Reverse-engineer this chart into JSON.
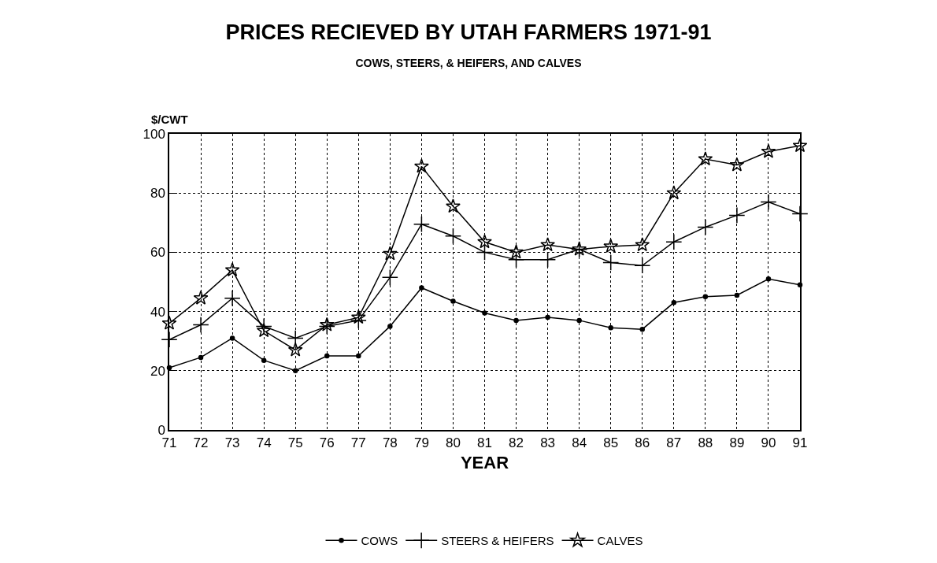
{
  "chart_data": {
    "type": "line",
    "title": "PRICES RECIEVED BY UTAH FARMERS 1971-91",
    "subtitle": "COWS, STEERS, & HEIFERS, AND CALVES",
    "xlabel": "YEAR",
    "ylabel": "$/CWT",
    "x": [
      71,
      72,
      73,
      74,
      75,
      76,
      77,
      78,
      79,
      80,
      81,
      82,
      83,
      84,
      85,
      86,
      87,
      88,
      89,
      90,
      91
    ],
    "series": [
      {
        "name": "COWS",
        "color": "#000000",
        "marker": "circle",
        "values": [
          21,
          24.5,
          31,
          23.5,
          20,
          25,
          25,
          35,
          48,
          43.5,
          39.5,
          37,
          38,
          37,
          34.5,
          34,
          43,
          45,
          45.5,
          51,
          49
        ]
      },
      {
        "name": "STEERS & HEIFERS",
        "color": "#000000",
        "marker": "cross",
        "values": [
          30.5,
          35.5,
          44.5,
          35,
          31,
          35,
          37,
          51.5,
          69.5,
          65.5,
          60,
          57.5,
          57.5,
          61,
          56.5,
          55.5,
          63.5,
          68.5,
          72.5,
          77,
          73
        ]
      },
      {
        "name": "CALVES",
        "color": "#000000",
        "marker": "star",
        "values": [
          36,
          44.5,
          54,
          33.5,
          27,
          35.5,
          38,
          59.5,
          89,
          75.5,
          63.5,
          60,
          62.5,
          61,
          62,
          62.5,
          80,
          91.5,
          89.5,
          94,
          96
        ]
      }
    ],
    "xlim": [
      71,
      91
    ],
    "xticks": [
      71,
      72,
      73,
      74,
      75,
      76,
      77,
      78,
      79,
      80,
      81,
      82,
      83,
      84,
      85,
      86,
      87,
      88,
      89,
      90,
      91
    ],
    "ylim": [
      0,
      100
    ],
    "yticks": [
      0,
      20,
      40,
      60,
      80,
      100
    ],
    "grid": true,
    "legend": "bottom",
    "line_style": "solid"
  }
}
